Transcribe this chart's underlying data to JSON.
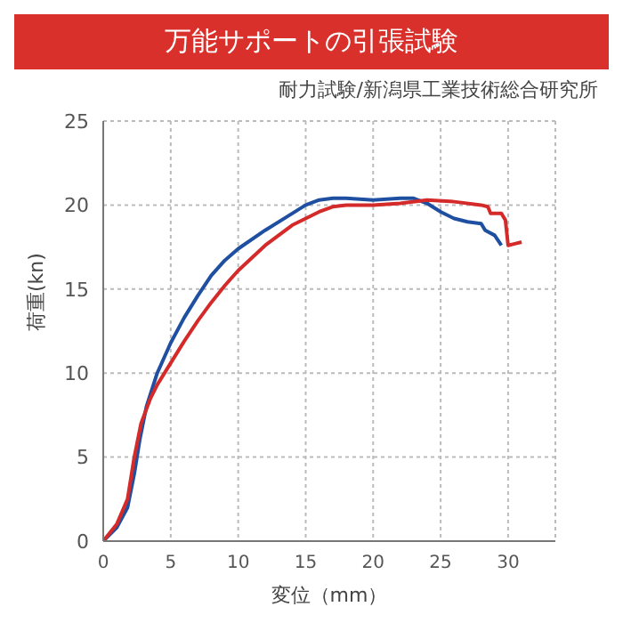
{
  "chart_data": {
    "type": "line",
    "title": "万能サポートの引張試験",
    "subtitle": "耐力試験/新潟県工業技術総合研究所",
    "xlabel": "変位（mm）",
    "ylabel": "荷重(kn)",
    "series": [
      {
        "color": "#1f4fa0",
        "x": [
          0,
          1,
          1.8,
          2.3,
          2.7,
          3.2,
          4,
          5,
          6,
          7,
          8,
          9,
          10,
          12,
          14,
          15,
          16,
          17,
          18,
          20,
          22,
          23,
          24,
          25,
          26,
          27,
          28,
          28.3,
          29,
          29.5
        ],
        "values": [
          0,
          0.8,
          2,
          4,
          6,
          8,
          10,
          11.8,
          13.3,
          14.6,
          15.8,
          16.7,
          17.4,
          18.5,
          19.5,
          20,
          20.3,
          20.4,
          20.4,
          20.3,
          20.4,
          20.4,
          20.1,
          19.6,
          19.2,
          19,
          18.9,
          18.5,
          18.2,
          17.6
        ]
      },
      {
        "color": "#d42a2a",
        "x": [
          0,
          1,
          1.8,
          2.3,
          2.8,
          3.5,
          4,
          5,
          6,
          7,
          8,
          9,
          10,
          12,
          14,
          16,
          17,
          18,
          20,
          22,
          24,
          26,
          28,
          28.5,
          28.7,
          29.5,
          29.8,
          30,
          30.5,
          31
        ],
        "values": [
          0,
          1,
          2.5,
          5,
          7,
          8.5,
          9.3,
          10.6,
          11.9,
          13.1,
          14.2,
          15.2,
          16.1,
          17.6,
          18.8,
          19.6,
          19.9,
          20,
          20,
          20.1,
          20.3,
          20.2,
          20,
          19.9,
          19.5,
          19.5,
          19.1,
          17.6,
          17.7,
          17.8
        ]
      }
    ],
    "xlim": [
      0,
      33.5
    ],
    "ylim": [
      0,
      25
    ],
    "xticks": [
      0,
      5,
      10,
      15,
      20,
      25,
      30
    ],
    "yticks": [
      0,
      5,
      10,
      15,
      20,
      25
    ],
    "grid": true,
    "line_style": "solid",
    "marker": "none"
  }
}
